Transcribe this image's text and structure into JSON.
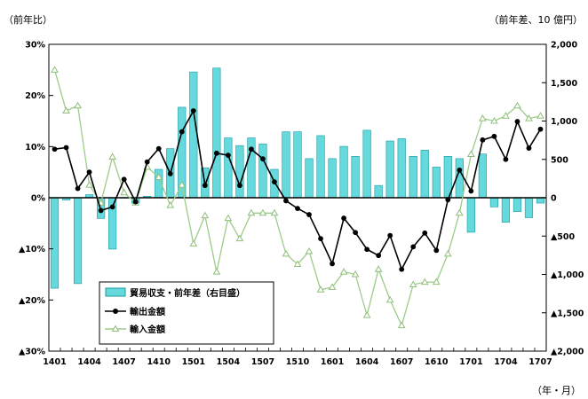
{
  "captions": {
    "left_unit": "（前年比）",
    "right_unit": "（前年差、10 億円）",
    "x_unit": "（年・月）"
  },
  "colors": {
    "bar_fill": "#66d9dd",
    "bar_stroke": "#1a9aa3",
    "export_line": "#000000",
    "import_line": "#9ccc8a",
    "import_marker": "#8fbf7a"
  },
  "chart_data": {
    "type": "bar+line",
    "x": [
      "1401",
      "1402",
      "1403",
      "1404",
      "1405",
      "1406",
      "1407",
      "1408",
      "1409",
      "1410",
      "1411",
      "1412",
      "1501",
      "1502",
      "1503",
      "1504",
      "1505",
      "1506",
      "1507",
      "1508",
      "1509",
      "1510",
      "1511",
      "1512",
      "1601",
      "1602",
      "1603",
      "1604",
      "1605",
      "1606",
      "1607",
      "1608",
      "1609",
      "1610",
      "1611",
      "1612",
      "1701",
      "1702",
      "1703",
      "1704",
      "1705",
      "1706",
      "1707"
    ],
    "x_tick_labels": [
      "1401",
      "1404",
      "1407",
      "1410",
      "1501",
      "1504",
      "1507",
      "1510",
      "1601",
      "1604",
      "1607",
      "1610",
      "1701",
      "1704",
      "1707"
    ],
    "left_axis": {
      "ylim": [
        -30,
        30
      ],
      "ticks": [
        30,
        20,
        10,
        0,
        -10,
        -20,
        -30
      ],
      "tick_labels": [
        "30%",
        "20%",
        "10%",
        "0%",
        "▲10%",
        "▲20%",
        "▲30%"
      ]
    },
    "right_axis": {
      "ylim": [
        -2000,
        2000
      ],
      "ticks": [
        2000,
        1500,
        1000,
        500,
        0,
        -500,
        -1000,
        -1500,
        -2000
      ],
      "tick_labels": [
        "2,000",
        "1,500",
        "1,000",
        "500",
        "0",
        "▲500",
        "▲1,000",
        "▲1,500",
        "▲2,000"
      ]
    },
    "series": [
      {
        "name": "貿易収支・前年差（右目盛）",
        "type": "bar",
        "axis": "right",
        "values": [
          -1180,
          -30,
          -1120,
          40,
          -270,
          -670,
          0,
          -70,
          20,
          370,
          640,
          1180,
          1640,
          390,
          1690,
          780,
          680,
          780,
          700,
          370,
          860,
          860,
          510,
          810,
          510,
          670,
          540,
          880,
          160,
          740,
          770,
          540,
          620,
          400,
          540,
          510,
          -450,
          570,
          -120,
          -320,
          -180,
          -260,
          -70
        ]
      },
      {
        "name": "輸出金額",
        "type": "line",
        "axis": "left",
        "values": [
          9.5,
          9.8,
          1.8,
          5.0,
          -2.5,
          -1.8,
          3.6,
          -0.8,
          7.0,
          9.6,
          4.7,
          12.9,
          17.0,
          2.4,
          8.7,
          8.3,
          2.4,
          9.5,
          7.6,
          3.1,
          -0.6,
          -2.1,
          -3.3,
          -8.0,
          -12.9,
          -4.0,
          -6.8,
          -10.1,
          -11.3,
          -7.4,
          -14.0,
          -9.6,
          -6.9,
          -10.3,
          -0.4,
          5.4,
          1.3,
          11.3,
          12.0,
          7.5,
          14.9,
          9.7,
          13.4
        ]
      },
      {
        "name": "輸入金額",
        "type": "line",
        "axis": "left",
        "values": [
          25.0,
          17.0,
          18.0,
          2.5,
          -1.0,
          8.0,
          1.0,
          -1.0,
          6.0,
          4.0,
          -1.5,
          2.5,
          -9.0,
          -3.5,
          -14.5,
          -4.0,
          -8.0,
          -3.0,
          -3.0,
          -3.0,
          -11.0,
          -13.0,
          -10.5,
          -18.0,
          -17.5,
          -14.5,
          -15.0,
          -23.0,
          -14.0,
          -20.0,
          -25.0,
          -17.0,
          -16.5,
          -16.5,
          -11.0,
          -3.0,
          8.5,
          15.5,
          15.0,
          16.0,
          18.0,
          15.5,
          16.0
        ]
      }
    ],
    "legend": [
      "貿易収支・前年差（右目盛）",
      "輸出金額",
      "輸入金額"
    ],
    "legend_position": "bottom-left",
    "grid": false
  }
}
